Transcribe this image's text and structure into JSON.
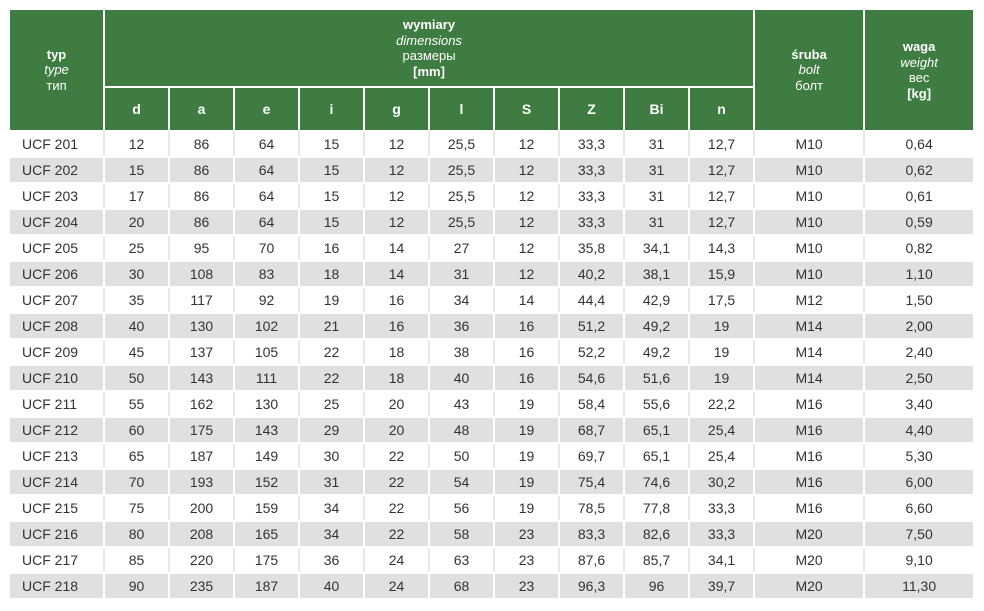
{
  "colors": {
    "header_green": "#3e7c42",
    "row_alt_gray": "#e0e0e0",
    "text": "#333333"
  },
  "table": {
    "header": {
      "typ": [
        "typ",
        "type",
        "тип"
      ],
      "dims": [
        "wymiary",
        "dimensions",
        "размеры",
        "[mm]"
      ],
      "dim_letters": [
        "d",
        "a",
        "e",
        "i",
        "g",
        "l",
        "S",
        "Z",
        "Bi",
        "n"
      ],
      "sruba": [
        "śruba",
        "bolt",
        "болт"
      ],
      "waga": [
        "waga",
        "weight",
        "вес",
        "[kg]"
      ]
    },
    "rows": [
      {
        "type": "UCF 201",
        "values": [
          "12",
          "86",
          "64",
          "15",
          "12",
          "25,5",
          "12",
          "33,3",
          "31",
          "12,7",
          "M10",
          "0,64"
        ]
      },
      {
        "type": "UCF 202",
        "values": [
          "15",
          "86",
          "64",
          "15",
          "12",
          "25,5",
          "12",
          "33,3",
          "31",
          "12,7",
          "M10",
          "0,62"
        ]
      },
      {
        "type": "UCF 203",
        "values": [
          "17",
          "86",
          "64",
          "15",
          "12",
          "25,5",
          "12",
          "33,3",
          "31",
          "12,7",
          "M10",
          "0,61"
        ]
      },
      {
        "type": "UCF 204",
        "values": [
          "20",
          "86",
          "64",
          "15",
          "12",
          "25,5",
          "12",
          "33,3",
          "31",
          "12,7",
          "M10",
          "0,59"
        ]
      },
      {
        "type": "UCF 205",
        "values": [
          "25",
          "95",
          "70",
          "16",
          "14",
          "27",
          "12",
          "35,8",
          "34,1",
          "14,3",
          "M10",
          "0,82"
        ]
      },
      {
        "type": "UCF 206",
        "values": [
          "30",
          "108",
          "83",
          "18",
          "14",
          "31",
          "12",
          "40,2",
          "38,1",
          "15,9",
          "M10",
          "1,10"
        ]
      },
      {
        "type": "UCF 207",
        "values": [
          "35",
          "117",
          "92",
          "19",
          "16",
          "34",
          "14",
          "44,4",
          "42,9",
          "17,5",
          "M12",
          "1,50"
        ]
      },
      {
        "type": "UCF 208",
        "values": [
          "40",
          "130",
          "102",
          "21",
          "16",
          "36",
          "16",
          "51,2",
          "49,2",
          "19",
          "M14",
          "2,00"
        ]
      },
      {
        "type": "UCF 209",
        "values": [
          "45",
          "137",
          "105",
          "22",
          "18",
          "38",
          "16",
          "52,2",
          "49,2",
          "19",
          "M14",
          "2,40"
        ]
      },
      {
        "type": "UCF 210",
        "values": [
          "50",
          "143",
          "111",
          "22",
          "18",
          "40",
          "16",
          "54,6",
          "51,6",
          "19",
          "M14",
          "2,50"
        ]
      },
      {
        "type": "UCF 211",
        "values": [
          "55",
          "162",
          "130",
          "25",
          "20",
          "43",
          "19",
          "58,4",
          "55,6",
          "22,2",
          "M16",
          "3,40"
        ]
      },
      {
        "type": "UCF 212",
        "values": [
          "60",
          "175",
          "143",
          "29",
          "20",
          "48",
          "19",
          "68,7",
          "65,1",
          "25,4",
          "M16",
          "4,40"
        ]
      },
      {
        "type": "UCF 213",
        "values": [
          "65",
          "187",
          "149",
          "30",
          "22",
          "50",
          "19",
          "69,7",
          "65,1",
          "25,4",
          "M16",
          "5,30"
        ]
      },
      {
        "type": "UCF 214",
        "values": [
          "70",
          "193",
          "152",
          "31",
          "22",
          "54",
          "19",
          "75,4",
          "74,6",
          "30,2",
          "M16",
          "6,00"
        ]
      },
      {
        "type": "UCF 215",
        "values": [
          "75",
          "200",
          "159",
          "34",
          "22",
          "56",
          "19",
          "78,5",
          "77,8",
          "33,3",
          "M16",
          "6,60"
        ]
      },
      {
        "type": "UCF 216",
        "values": [
          "80",
          "208",
          "165",
          "34",
          "22",
          "58",
          "23",
          "83,3",
          "82,6",
          "33,3",
          "M20",
          "7,50"
        ]
      },
      {
        "type": "UCF 217",
        "values": [
          "85",
          "220",
          "175",
          "36",
          "24",
          "63",
          "23",
          "87,6",
          "85,7",
          "34,1",
          "M20",
          "9,10"
        ]
      },
      {
        "type": "UCF 218",
        "values": [
          "90",
          "235",
          "187",
          "40",
          "24",
          "68",
          "23",
          "96,3",
          "96",
          "39,7",
          "M20",
          "11,30"
        ]
      }
    ]
  }
}
